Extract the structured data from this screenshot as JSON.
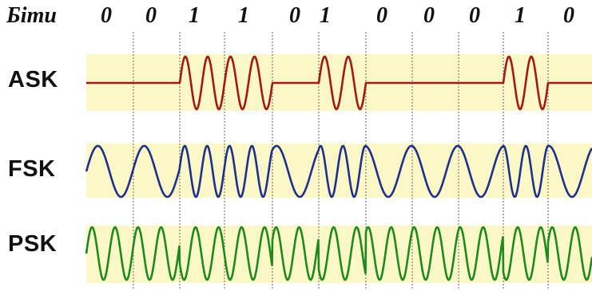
{
  "header": {
    "bits_label": "Біти"
  },
  "bits": [
    "0",
    "0",
    "1",
    "1",
    "0",
    "1",
    "0",
    "0",
    "0",
    "1",
    "0"
  ],
  "rows": [
    {
      "label": "ASK",
      "color": "#a31818"
    },
    {
      "label": "FSK",
      "color": "#1f2f8c"
    },
    {
      "label": "PSK",
      "color": "#1e8a1e"
    }
  ],
  "band_color": "#fbf7c6"
}
